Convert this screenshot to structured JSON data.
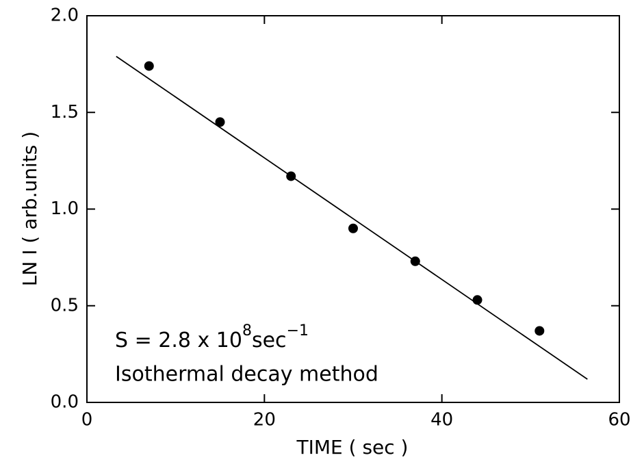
{
  "chart_data": {
    "type": "scatter",
    "x_label": "TIME  ( sec )",
    "y_label": "LN I  ( arb.units )",
    "annotation": [
      "S = 2.8 x 10",
      "8",
      "sec",
      "−1"
    ],
    "annotation_2": "Isothermal decay method",
    "series": [
      {
        "kind": "points",
        "color": "#000000",
        "x": [
          7,
          15,
          23,
          30,
          37,
          44,
          51
        ],
        "values": [
          1.74,
          1.45,
          1.17,
          0.9,
          0.73,
          0.53,
          0.37
        ]
      },
      {
        "kind": "line",
        "color": "#000000",
        "x": [
          3.3,
          56.4
        ],
        "values": [
          1.79,
          0.12
        ]
      }
    ],
    "xlim": [
      0,
      60
    ],
    "xticks": [
      0,
      20,
      40,
      60
    ],
    "ylim": [
      0,
      2
    ],
    "yticks": [
      {
        "value": 0,
        "label": "0.0"
      },
      {
        "value": 0.5,
        "label": "0.5"
      },
      {
        "value": 1,
        "label": "1.0"
      },
      {
        "value": 1.5,
        "label": "1.5"
      },
      {
        "value": 2,
        "label": "2.0"
      }
    ]
  }
}
